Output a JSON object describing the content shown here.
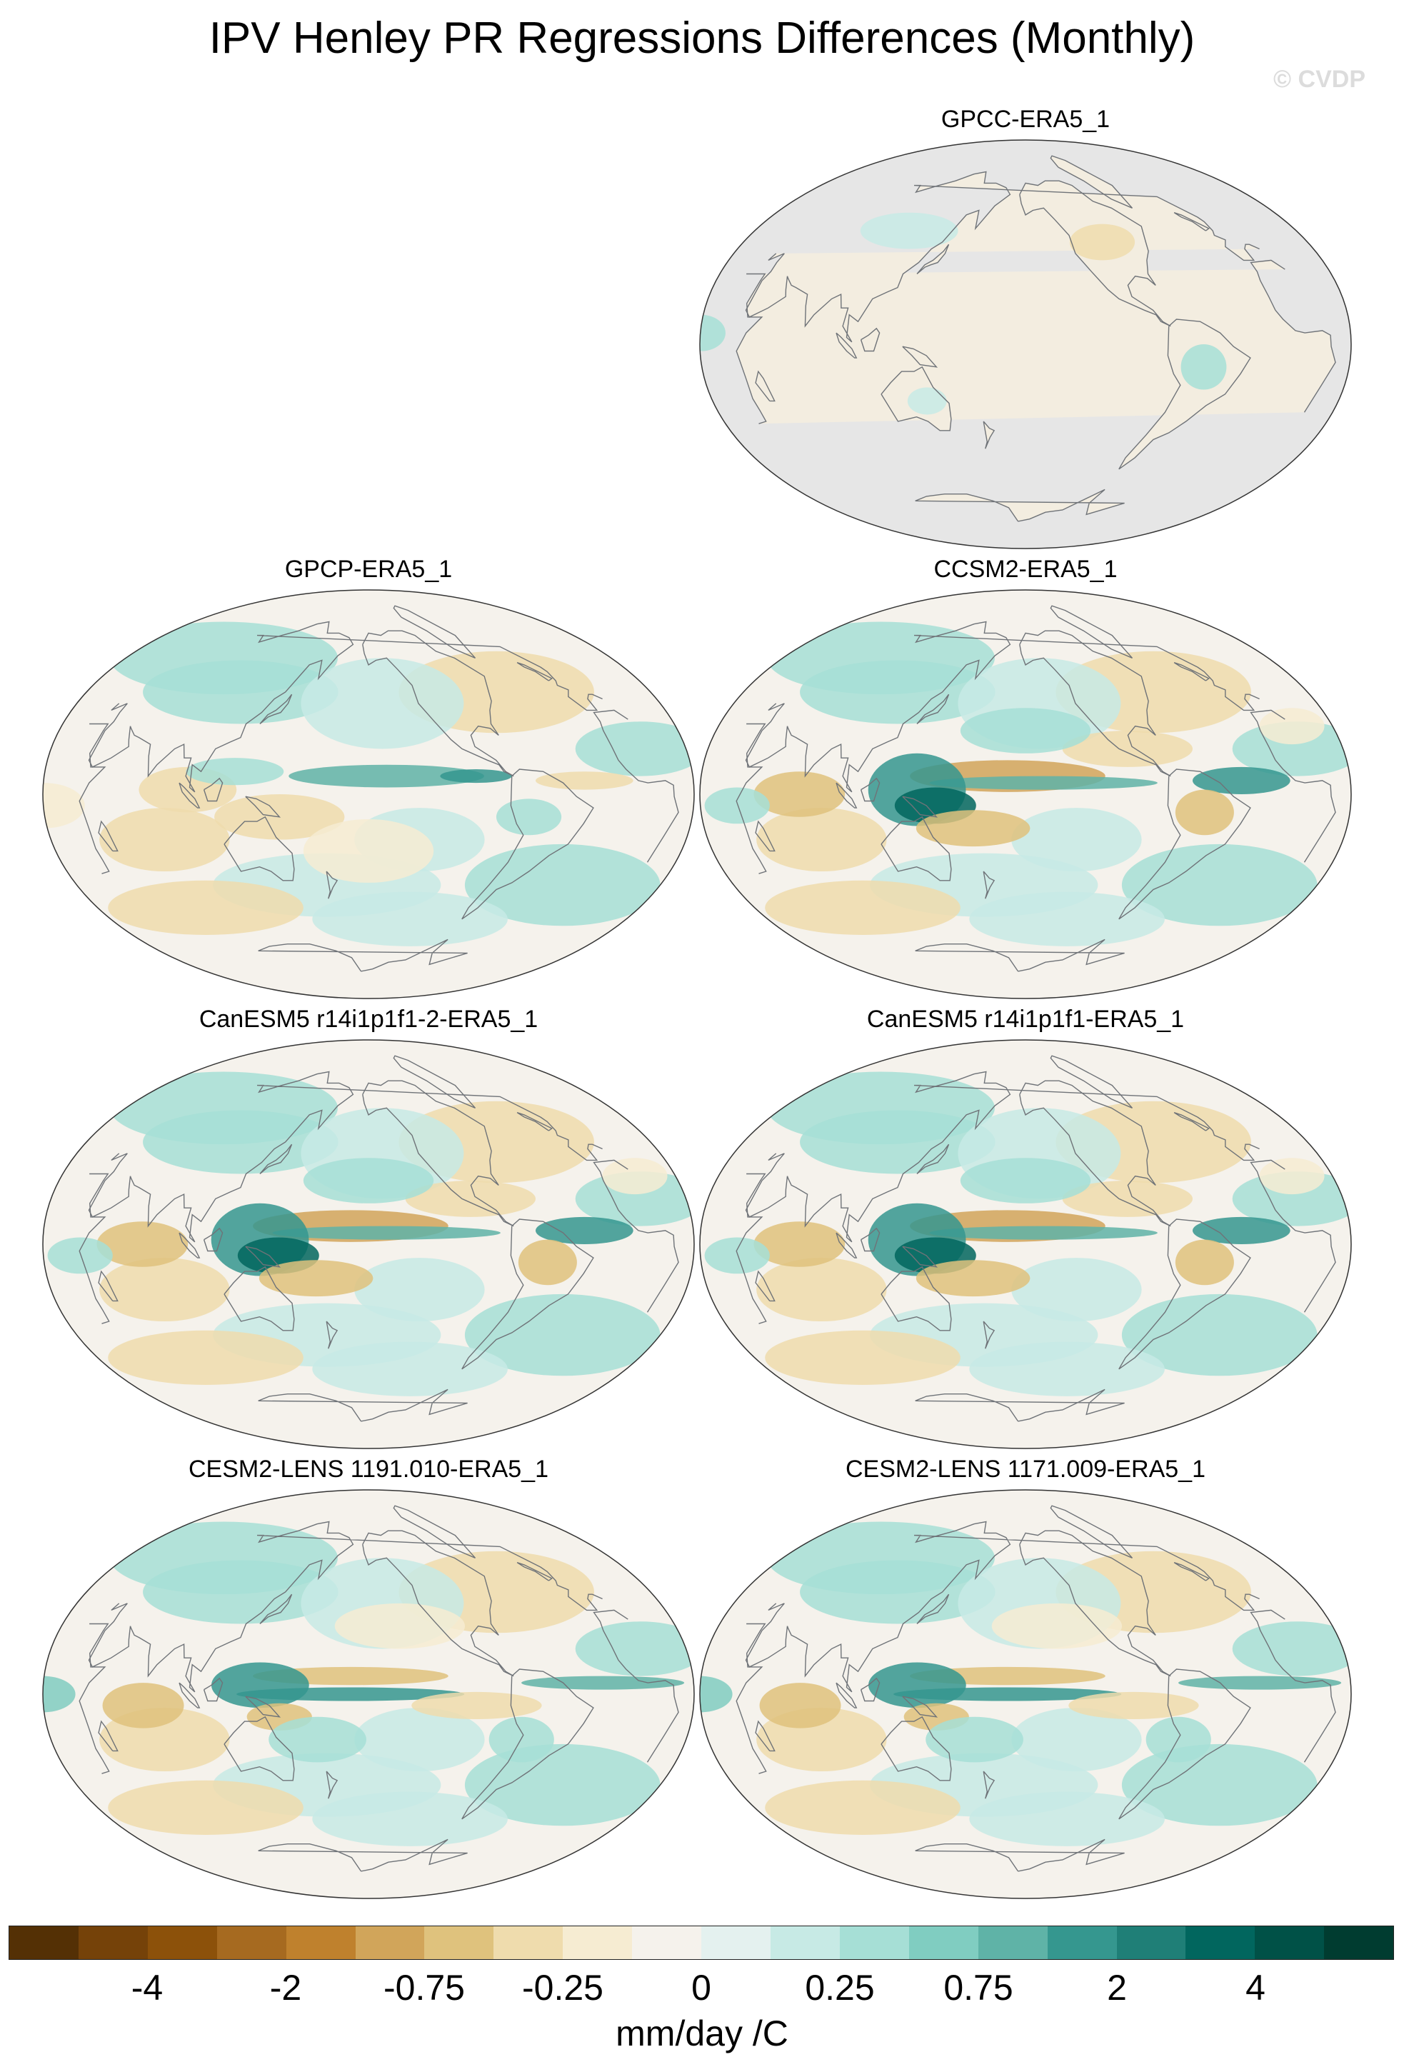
{
  "title": "IPV Henley PR Regressions Differences (Monthly)",
  "watermark": "© CVDP",
  "panels": [
    {
      "label": "GPCC-ERA5_1",
      "variant": "land"
    },
    {
      "label": "GPCP-ERA5_1",
      "variant": "weak"
    },
    {
      "label": "CCSM2-ERA5_1",
      "variant": "strong"
    },
    {
      "label": "CanESM5 r14i1p1f1-2-ERA5_1",
      "variant": "strong"
    },
    {
      "label": "CanESM5 r14i1p1f1-ERA5_1",
      "variant": "strong"
    },
    {
      "label": "CESM2-LENS 1191.010-ERA5_1",
      "variant": "medium"
    },
    {
      "label": "CESM2-LENS 1171.009-ERA5_1",
      "variant": "medium"
    }
  ],
  "colorbar": {
    "colors": [
      "#543005",
      "#754209",
      "#8c510a",
      "#a66a20",
      "#bf812d",
      "#d1a55a",
      "#dfc27d",
      "#efdcad",
      "#f6ecd2",
      "#f5f2ec",
      "#e4f1ef",
      "#c7eae5",
      "#a6dfd6",
      "#80cdc1",
      "#5fb3a7",
      "#35978f",
      "#1f7f77",
      "#01665e",
      "#005147",
      "#003c30"
    ],
    "tick_labels": [
      "-4",
      "-2",
      "-0.75",
      "-0.25",
      "0",
      "0.25",
      "0.75",
      "2",
      "4"
    ],
    "units": "mm/day /C"
  }
}
